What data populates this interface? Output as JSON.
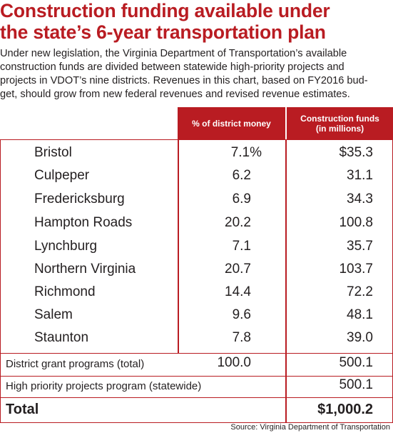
{
  "title_lines": [
    "Construction funding available under",
    "the state’s 6-year transportation plan"
  ],
  "intro_lines": [
    "Under new legislation, the Virginia Department of Transportation’s available",
    "construction funds are divided between statewide high-priority projects and",
    "projects in VDOT’s nine districts. Revenues in this chart, based on FY2016 bud-",
    "get, should grow from new federal revenues and revised revenue estimates."
  ],
  "table": {
    "headers": {
      "pct": "% of district money",
      "funds_line1": "Construction funds",
      "funds_line2": "(in millions)"
    },
    "districts": [
      {
        "name": "Bristol",
        "pct": "7.1%",
        "funds": "$35.3"
      },
      {
        "name": "Culpeper",
        "pct": "6.2",
        "funds": "31.1"
      },
      {
        "name": "Fredericksburg",
        "pct": "6.9",
        "funds": "34.3"
      },
      {
        "name": "Hampton Roads",
        "pct": "20.2",
        "funds": "100.8"
      },
      {
        "name": "Lynchburg",
        "pct": "7.1",
        "funds": "35.7"
      },
      {
        "name": "Northern Virginia",
        "pct": "20.7",
        "funds": "103.7"
      },
      {
        "name": "Richmond",
        "pct": "14.4",
        "funds": "72.2"
      },
      {
        "name": "Salem",
        "pct": "9.6",
        "funds": "48.1"
      },
      {
        "name": "Staunton",
        "pct": "7.8",
        "funds": "39.0"
      }
    ],
    "grant": {
      "label": "District grant programs (total)",
      "pct": "100.0",
      "funds": "500.1"
    },
    "high_priority": {
      "label": "High priority projects program (statewide)",
      "funds": "500.1"
    },
    "total": {
      "label": "Total",
      "funds": "$1,000.2"
    }
  },
  "source": "Source: Virginia Department of Transportation",
  "colors": {
    "accent": "#b91c22",
    "text": "#231f20"
  }
}
